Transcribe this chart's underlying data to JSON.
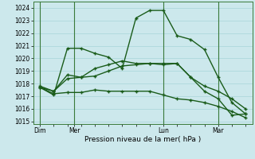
{
  "title": "",
  "xlabel": "Pression niveau de la mer( hPa )",
  "ylabel": "",
  "bg_color": "#cce8ec",
  "grid_color": "#b0d8dc",
  "line_color": "#1a5c1a",
  "vline_color": "#3a7a3a",
  "ylim": [
    1014.8,
    1024.5
  ],
  "yticks": [
    1015,
    1016,
    1017,
    1018,
    1019,
    1020,
    1021,
    1022,
    1023,
    1024
  ],
  "xtick_labels": [
    "Dim",
    "Mer",
    "Lun",
    "Mar"
  ],
  "series": [
    [
      1017.7,
      1017.1,
      1020.8,
      1020.8,
      1020.4,
      1020.1,
      1019.2,
      1023.2,
      1023.8,
      1023.8,
      1021.8,
      1021.5,
      1020.7,
      1018.5,
      1016.5,
      1015.6
    ],
    [
      1017.7,
      1017.4,
      1018.7,
      1018.5,
      1019.2,
      1019.5,
      1019.8,
      1019.6,
      1019.6,
      1019.5,
      1019.6,
      1018.5,
      1017.4,
      1016.8,
      1015.5,
      1015.6
    ],
    [
      1017.8,
      1017.4,
      1018.4,
      1018.5,
      1018.6,
      1019.0,
      1019.4,
      1019.5,
      1019.6,
      1019.6,
      1019.6,
      1018.5,
      1017.8,
      1017.4,
      1016.8,
      1016.0
    ],
    [
      1017.7,
      1017.2,
      1017.3,
      1017.3,
      1017.5,
      1017.4,
      1017.4,
      1017.4,
      1017.4,
      1017.1,
      1016.8,
      1016.7,
      1016.5,
      1016.2,
      1015.8,
      1015.3
    ]
  ],
  "linewidth": 1.0,
  "markersize": 3.5
}
